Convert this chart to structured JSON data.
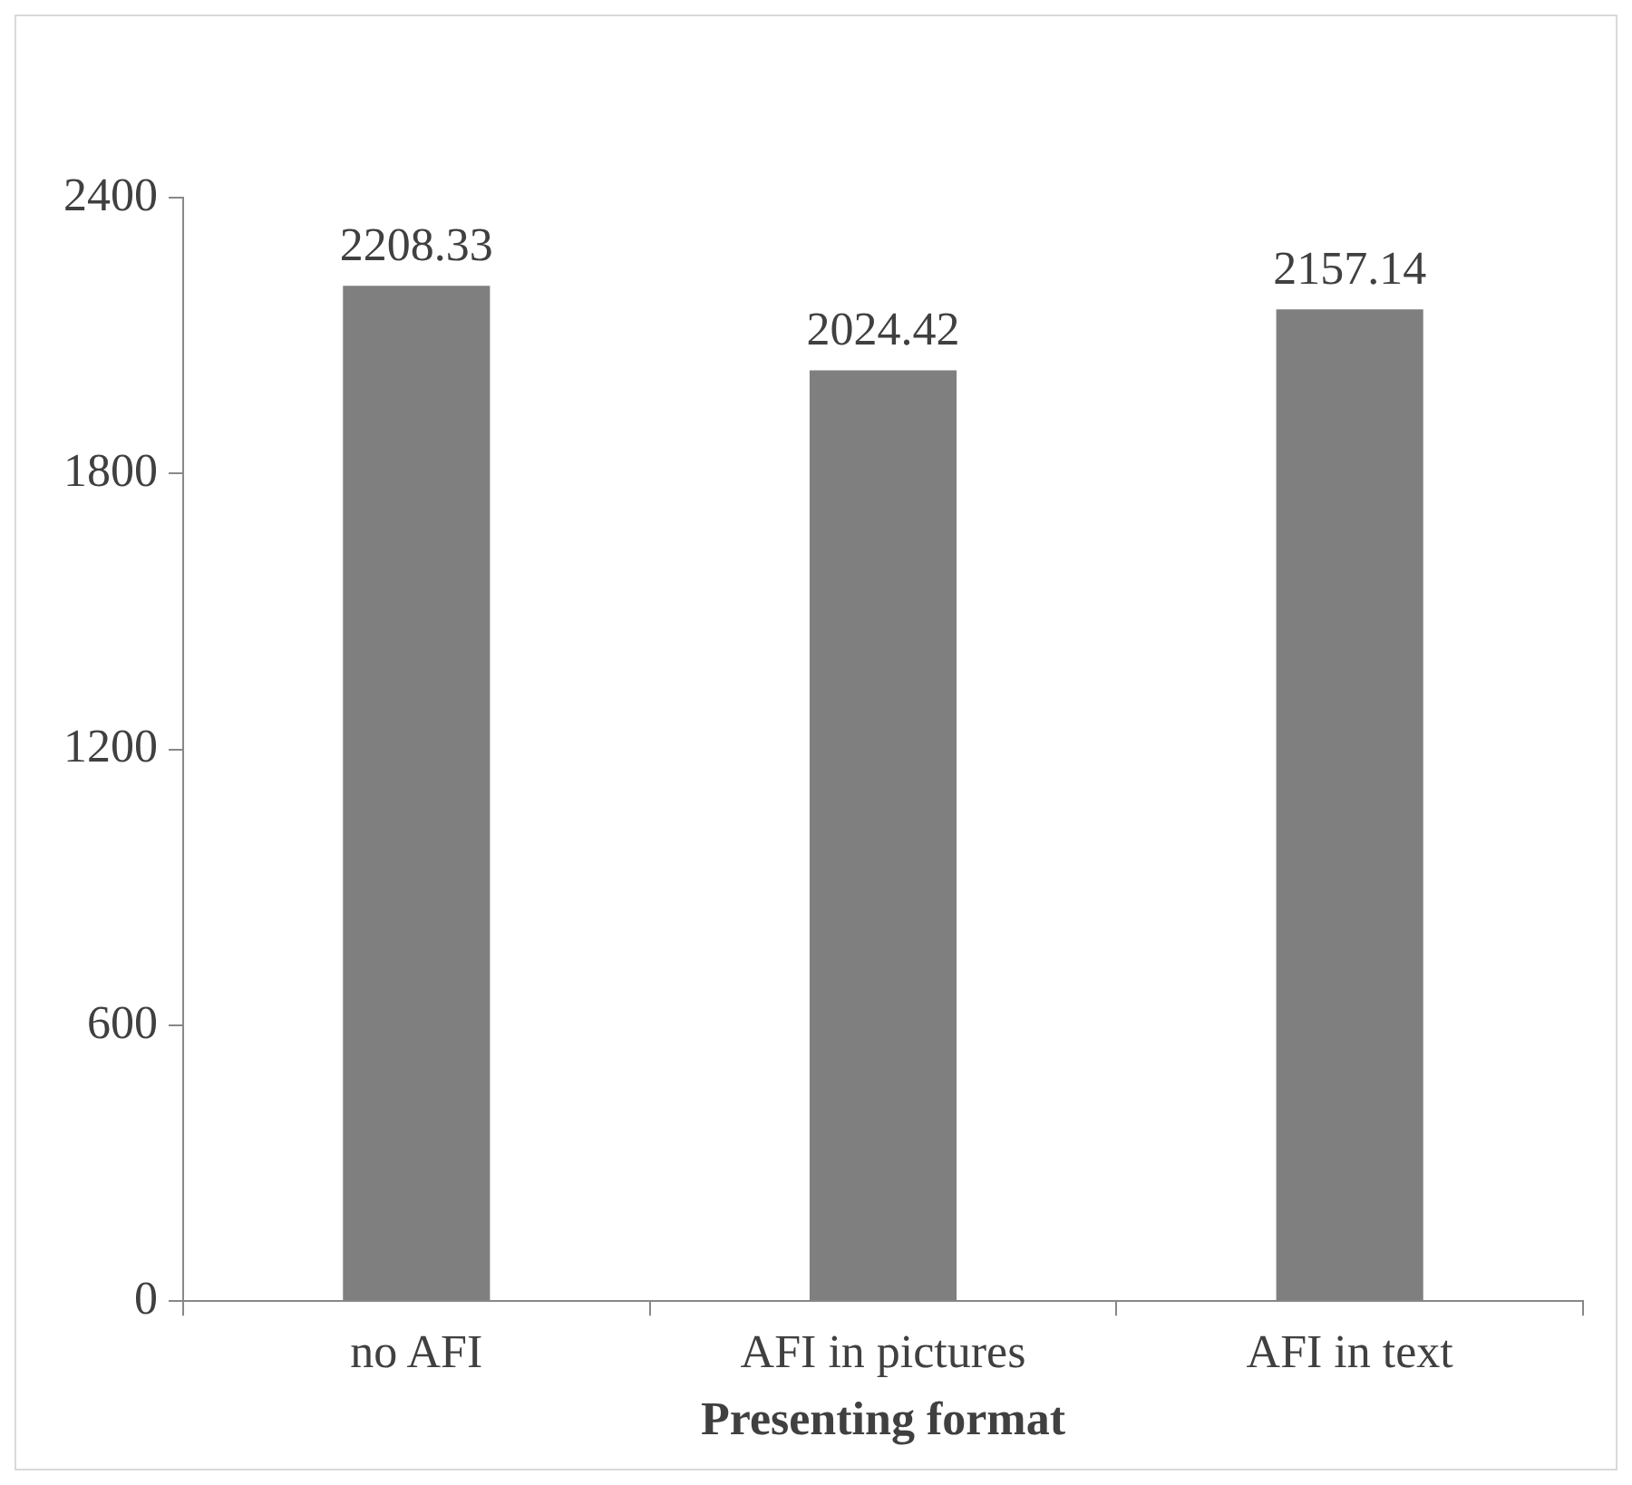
{
  "chart_data": {
    "type": "bar",
    "xlabel": "Presenting format",
    "categories": [
      "no AFI",
      "AFI in pictures",
      "AFI in text"
    ],
    "values": [
      2208.33,
      2024.42,
      2157.14
    ],
    "color": "#7f7f7f",
    "ylim": [
      0,
      2400
    ],
    "yticks": [
      0,
      600,
      1200,
      1800,
      2400
    ],
    "grid": false,
    "legend": false,
    "data_labels": true
  }
}
